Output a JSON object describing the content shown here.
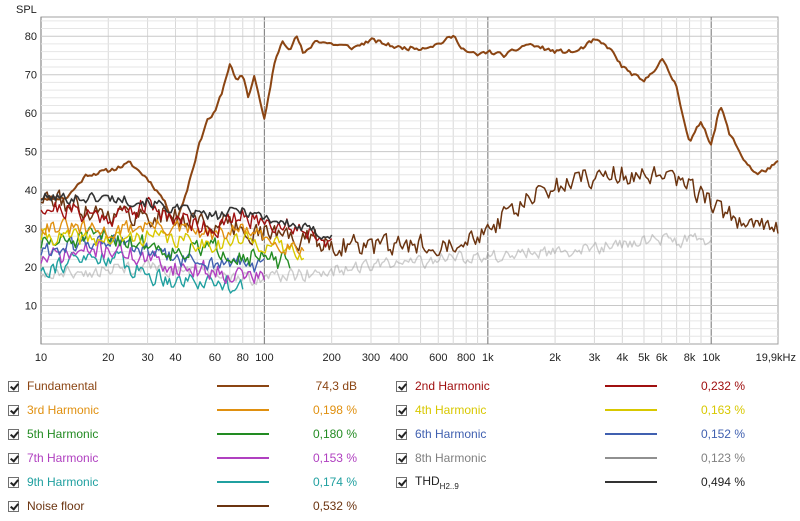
{
  "chart_data": {
    "type": "line",
    "ylabel": "SPL",
    "xscale": "log",
    "xlim": [
      10,
      19900
    ],
    "ylim": [
      0,
      85
    ],
    "grid": true,
    "xticks": [
      {
        "v": 10,
        "label": "10"
      },
      {
        "v": 20,
        "label": "20"
      },
      {
        "v": 30,
        "label": "30"
      },
      {
        "v": 40,
        "label": "40"
      },
      {
        "v": 60,
        "label": "60"
      },
      {
        "v": 80,
        "label": "80"
      },
      {
        "v": 100,
        "label": "100"
      },
      {
        "v": 200,
        "label": "200"
      },
      {
        "v": 300,
        "label": "300"
      },
      {
        "v": 400,
        "label": "400"
      },
      {
        "v": 600,
        "label": "600"
      },
      {
        "v": 800,
        "label": "800"
      },
      {
        "v": 1000,
        "label": "1k"
      },
      {
        "v": 2000,
        "label": "2k"
      },
      {
        "v": 3000,
        "label": "3k"
      },
      {
        "v": 4000,
        "label": "4k"
      },
      {
        "v": 5000,
        "label": "5k"
      },
      {
        "v": 6000,
        "label": "6k"
      },
      {
        "v": 8000,
        "label": "8k"
      },
      {
        "v": 10000,
        "label": "10k"
      },
      {
        "v": 19900,
        "label": "19,9kHz"
      }
    ],
    "yticks": [
      10,
      20,
      30,
      40,
      50,
      60,
      70,
      80
    ],
    "series": [
      {
        "name": "Fundamental",
        "value": "74,3 dB",
        "color": "#8B4513",
        "width": 2,
        "noise": 0.8,
        "seed": 11,
        "x": [
          10,
          13,
          16,
          20,
          25,
          30,
          35,
          40,
          45,
          50,
          55,
          60,
          65,
          70,
          75,
          80,
          85,
          90,
          100,
          110,
          120,
          130,
          140,
          150,
          170,
          200,
          250,
          300,
          400,
          500,
          600,
          700,
          800,
          900,
          1000,
          1200,
          1500,
          2000,
          2500,
          3000,
          3500,
          4000,
          5000,
          6000,
          7000,
          8000,
          9000,
          10000,
          11000,
          12000,
          14000,
          16000,
          19900
        ],
        "y": [
          38,
          38,
          44,
          45,
          47,
          43,
          38,
          31,
          40,
          50,
          58,
          60,
          66,
          73,
          68,
          70,
          64,
          70,
          58,
          72,
          79,
          77,
          80,
          75,
          79,
          78,
          77,
          79,
          77,
          77,
          78,
          80,
          76,
          75,
          76,
          75,
          78,
          76,
          76,
          79,
          77,
          72,
          68,
          74,
          67,
          52,
          58,
          52,
          62,
          55,
          48,
          44,
          47
        ]
      },
      {
        "name": "2nd Harmonic",
        "value": "0,232 %",
        "color": "#A01010",
        "width": 1.4,
        "noise": 3.5,
        "seed": 21,
        "x": [
          10,
          20,
          30,
          40,
          60,
          80,
          100,
          150,
          200
        ],
        "y": [
          36,
          33,
          36,
          33,
          30,
          33,
          32,
          30,
          27
        ]
      },
      {
        "name": "3rd Harmonic",
        "value": "0,198 %",
        "color": "#E09010",
        "width": 1.4,
        "noise": 3,
        "seed": 31,
        "x": [
          10,
          20,
          30,
          40,
          60,
          80,
          100,
          150
        ],
        "y": [
          31,
          29,
          31,
          30,
          28,
          30,
          27,
          25
        ]
      },
      {
        "name": "4th Harmonic",
        "value": "0,163 %",
        "color": "#D8C800",
        "width": 1.4,
        "noise": 3,
        "seed": 41,
        "x": [
          10,
          20,
          30,
          40,
          60,
          80,
          100,
          150
        ],
        "y": [
          28,
          27,
          28,
          27,
          26,
          27,
          26,
          24
        ]
      },
      {
        "name": "5th Harmonic",
        "value": "0,180 %",
        "color": "#228B22",
        "width": 1.4,
        "noise": 3.5,
        "seed": 51,
        "x": [
          10,
          20,
          30,
          40,
          60,
          80,
          100,
          130
        ],
        "y": [
          26,
          28,
          26,
          24,
          25,
          23,
          22,
          21
        ]
      },
      {
        "name": "6th Harmonic",
        "value": "0,152 %",
        "color": "#4060B0",
        "width": 1.4,
        "noise": 3,
        "seed": 61,
        "x": [
          10,
          20,
          30,
          40,
          60,
          80,
          100
        ],
        "y": [
          24,
          27,
          24,
          22,
          21,
          21,
          20
        ]
      },
      {
        "name": "7th Harmonic",
        "value": "0,153 %",
        "color": "#B040C0",
        "width": 1.4,
        "noise": 3.5,
        "seed": 71,
        "x": [
          10,
          20,
          30,
          40,
          60,
          80,
          100
        ],
        "y": [
          22,
          25,
          22,
          20,
          19,
          18,
          17
        ]
      },
      {
        "name": "8th Harmonic",
        "value": "0,123 %",
        "color": "#909090",
        "width": 1.4,
        "noise": 2.5,
        "seed": 81,
        "x": [
          10,
          30,
          60,
          100,
          200,
          400,
          1000,
          3000,
          6000,
          10000
        ],
        "y": [
          18,
          20,
          18,
          17,
          19,
          21,
          23,
          25,
          27,
          27
        ]
      },
      {
        "name": "9th Harmonic",
        "value": "0,174 %",
        "color": "#20A0A0",
        "width": 1.4,
        "noise": 3.5,
        "seed": 91,
        "x": [
          10,
          20,
          30,
          40,
          60,
          80
        ],
        "y": [
          20,
          23,
          18,
          17,
          16,
          16
        ]
      },
      {
        "name": "THDH2..9",
        "value": "0,494 %",
        "color": "#333333",
        "width": 1.6,
        "noise": 2,
        "seed": 101,
        "x": [
          10,
          20,
          30,
          40,
          60,
          80,
          100,
          150,
          200
        ],
        "y": [
          38,
          38,
          37,
          35,
          33,
          35,
          33,
          30,
          28
        ]
      },
      {
        "name": "Noise floor",
        "value": "0,532 %",
        "color": "#6B3410",
        "width": 1.5,
        "noise": 4,
        "seed": 111,
        "x": [
          10,
          20,
          40,
          80,
          200,
          400,
          700,
          1000,
          1500,
          2000,
          3000,
          4000,
          6000,
          8000,
          10000,
          12000,
          15000,
          19900
        ],
        "y": [
          38,
          34,
          33,
          30,
          26,
          25,
          27,
          30,
          37,
          41,
          44,
          44,
          43,
          41,
          37,
          33,
          31,
          30
        ]
      }
    ]
  },
  "legend": {
    "items": [
      {
        "label": "Fundamental",
        "label_color": "#8B4513",
        "value": "74,3 dB",
        "value_color": "#8B4513",
        "color": "#8B4513"
      },
      {
        "label": "2nd Harmonic",
        "label_color": "#A01010",
        "value": "0,232 %",
        "value_color": "#A01010",
        "color": "#A01010"
      },
      {
        "label": "3rd Harmonic",
        "label_color": "#E09010",
        "value": "0,198 %",
        "value_color": "#E09010",
        "color": "#E09010"
      },
      {
        "label": "4th Harmonic",
        "label_color": "#D8C800",
        "value": "0,163 %",
        "value_color": "#D8C800",
        "color": "#D8C800"
      },
      {
        "label": "5th Harmonic",
        "label_color": "#228B22",
        "value": "0,180 %",
        "value_color": "#228B22",
        "color": "#228B22"
      },
      {
        "label": "6th Harmonic",
        "label_color": "#4060B0",
        "value": "0,152 %",
        "value_color": "#4060B0",
        "color": "#4060B0"
      },
      {
        "label": "7th Harmonic",
        "label_color": "#B040C0",
        "value": "0,153 %",
        "value_color": "#B040C0",
        "color": "#B040C0"
      },
      {
        "label": "8th Harmonic",
        "label_color": "#808080",
        "value": "0,123 %",
        "value_color": "#808080",
        "color": "#909090"
      },
      {
        "label": "9th Harmonic",
        "label_color": "#20A0A0",
        "value": "0,174 %",
        "value_color": "#20A0A0",
        "color": "#20A0A0"
      },
      {
        "label": "THD",
        "label_sub": "H2..9",
        "label_color": "#222222",
        "value": "0,494 %",
        "value_color": "#222222",
        "color": "#333333"
      },
      {
        "label": "Noise floor",
        "label_color": "#6B3410",
        "value": "0,532 %",
        "value_color": "#6B3410",
        "color": "#6B3410"
      }
    ]
  }
}
